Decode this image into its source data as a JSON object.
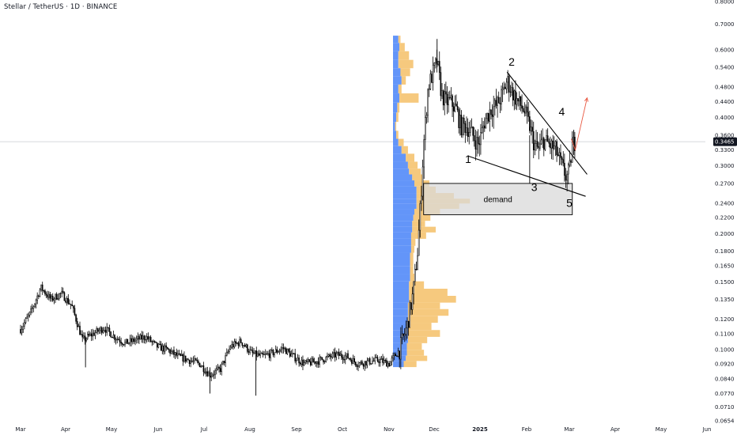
{
  "header": {
    "title": "Stellar / TetherUS · 1D · BINANCE"
  },
  "chart_data": {
    "type": "candlestick",
    "symbol": "Stellar / TetherUS",
    "interval": "1D",
    "exchange": "BINANCE",
    "price_axis": {
      "scale": "log",
      "range": [
        0.0654,
        0.8
      ],
      "ticks": [
        "0.8000",
        "0.7000",
        "0.6000",
        "0.5400",
        "0.4800",
        "0.4400",
        "0.4000",
        "0.3600",
        "0.3300",
        "0.3000",
        "0.2700",
        "0.2400",
        "0.2200",
        "0.2000",
        "0.1800",
        "0.1650",
        "0.1500",
        "0.1350",
        "0.1200",
        "0.1100",
        "0.1000",
        "0.0920",
        "0.0840",
        "0.0770",
        "0.0710",
        "0.0654"
      ]
    },
    "time_axis": {
      "labels": [
        "Mar",
        "Apr",
        "May",
        "Jun",
        "Jul",
        "Aug",
        "Sep",
        "Oct",
        "Nov",
        "Dec",
        "2025",
        "Feb",
        "Mar",
        "Apr",
        "May",
        "Jun"
      ],
      "bold_labels": [
        "2025"
      ]
    },
    "current_price": {
      "value": 0.3465,
      "label": "0.3465"
    },
    "price_path": [
      [
        "2024-03-01",
        0.113
      ],
      [
        "2024-03-08",
        0.125
      ],
      [
        "2024-03-15",
        0.145
      ],
      [
        "2024-03-22",
        0.135
      ],
      [
        "2024-03-29",
        0.14
      ],
      [
        "2024-04-05",
        0.13
      ],
      [
        "2024-04-12",
        0.106
      ],
      [
        "2024-04-19",
        0.11
      ],
      [
        "2024-04-26",
        0.114
      ],
      [
        "2024-05-03",
        0.108
      ],
      [
        "2024-05-10",
        0.104
      ],
      [
        "2024-05-17",
        0.106
      ],
      [
        "2024-05-24",
        0.108
      ],
      [
        "2024-05-31",
        0.102
      ],
      [
        "2024-06-07",
        0.1
      ],
      [
        "2024-06-14",
        0.096
      ],
      [
        "2024-06-21",
        0.094
      ],
      [
        "2024-06-28",
        0.092
      ],
      [
        "2024-07-05",
        0.086
      ],
      [
        "2024-07-12",
        0.089
      ],
      [
        "2024-07-19",
        0.102
      ],
      [
        "2024-07-26",
        0.105
      ],
      [
        "2024-08-02",
        0.098
      ],
      [
        "2024-08-09",
        0.096
      ],
      [
        "2024-08-16",
        0.098
      ],
      [
        "2024-08-23",
        0.101
      ],
      [
        "2024-08-30",
        0.096
      ],
      [
        "2024-09-06",
        0.092
      ],
      [
        "2024-09-13",
        0.093
      ],
      [
        "2024-09-20",
        0.095
      ],
      [
        "2024-09-27",
        0.097
      ],
      [
        "2024-10-04",
        0.096
      ],
      [
        "2024-10-11",
        0.092
      ],
      [
        "2024-10-18",
        0.093
      ],
      [
        "2024-10-25",
        0.094
      ],
      [
        "2024-11-01",
        0.092
      ],
      [
        "2024-11-08",
        0.1
      ],
      [
        "2024-11-13",
        0.115
      ],
      [
        "2024-11-17",
        0.14
      ],
      [
        "2024-11-20",
        0.18
      ],
      [
        "2024-11-22",
        0.24
      ],
      [
        "2024-11-24",
        0.34
      ],
      [
        "2024-11-27",
        0.48
      ],
      [
        "2024-11-30",
        0.52
      ],
      [
        "2024-12-03",
        0.56
      ],
      [
        "2024-12-06",
        0.46
      ],
      [
        "2024-12-09",
        0.44
      ],
      [
        "2024-12-12",
        0.44
      ],
      [
        "2024-12-16",
        0.42
      ],
      [
        "2024-12-19",
        0.38
      ],
      [
        "2024-12-23",
        0.38
      ],
      [
        "2024-12-27",
        0.36
      ],
      [
        "2024-12-31",
        0.34
      ],
      [
        "2025-01-04",
        0.39
      ],
      [
        "2025-01-08",
        0.42
      ],
      [
        "2025-01-12",
        0.43
      ],
      [
        "2025-01-16",
        0.46
      ],
      [
        "2025-01-19",
        0.5
      ],
      [
        "2025-01-22",
        0.47
      ],
      [
        "2025-01-26",
        0.44
      ],
      [
        "2025-01-30",
        0.42
      ],
      [
        "2025-02-03",
        0.38
      ],
      [
        "2025-02-06",
        0.34
      ],
      [
        "2025-02-09",
        0.33
      ],
      [
        "2025-02-12",
        0.35
      ],
      [
        "2025-02-16",
        0.34
      ],
      [
        "2025-02-20",
        0.33
      ],
      [
        "2025-02-24",
        0.3
      ],
      [
        "2025-02-27",
        0.28
      ],
      [
        "2025-03-01",
        0.29
      ],
      [
        "2025-03-03",
        0.34
      ],
      [
        "2025-03-05",
        0.3465
      ]
    ],
    "annotations": {
      "wave_labels": [
        {
          "text": "1",
          "date": "2024-12-24",
          "price": 0.305
        },
        {
          "text": "2",
          "date": "2025-01-22",
          "price": 0.545
        },
        {
          "text": "3",
          "date": "2025-02-06",
          "price": 0.258
        },
        {
          "text": "4",
          "date": "2025-02-24",
          "price": 0.405
        },
        {
          "text": "5",
          "date": "2025-03-01",
          "price": 0.235
        }
      ],
      "zone": {
        "label": "demand",
        "top": 0.27,
        "bottom": 0.224,
        "start": "2024-11-24",
        "end": "2025-03-03"
      },
      "trend_lines": [
        {
          "from": [
            "2025-01-19",
            0.525
          ],
          "to": [
            "2025-03-13",
            0.285
          ]
        },
        {
          "from": [
            "2024-12-24",
            0.318
          ],
          "to": [
            "2025-03-12",
            0.25
          ]
        }
      ],
      "projection": {
        "from": [
          "2025-03-05",
          0.33
        ],
        "to": [
          "2025-03-13",
          0.45
        ]
      }
    },
    "volume_profile": {
      "bins": [
        {
          "price": 0.64,
          "up": 5,
          "down": 2
        },
        {
          "price": 0.61,
          "up": 6,
          "down": 5
        },
        {
          "price": 0.58,
          "up": 5,
          "down": 10
        },
        {
          "price": 0.55,
          "up": 5,
          "down": 14
        },
        {
          "price": 0.525,
          "up": 7,
          "down": 9
        },
        {
          "price": 0.5,
          "up": 8,
          "down": 4
        },
        {
          "price": 0.475,
          "up": 5,
          "down": 3
        },
        {
          "price": 0.45,
          "up": 6,
          "down": 18
        },
        {
          "price": 0.425,
          "up": 4,
          "down": 2
        },
        {
          "price": 0.4,
          "up": 3,
          "down": 2
        },
        {
          "price": 0.38,
          "up": 2,
          "down": 1
        },
        {
          "price": 0.36,
          "up": 3,
          "down": 2
        },
        {
          "price": 0.345,
          "up": 5,
          "down": 5
        },
        {
          "price": 0.33,
          "up": 8,
          "down": 6
        },
        {
          "price": 0.315,
          "up": 12,
          "down": 8
        },
        {
          "price": 0.3,
          "up": 14,
          "down": 9
        },
        {
          "price": 0.29,
          "up": 15,
          "down": 11
        },
        {
          "price": 0.28,
          "up": 18,
          "down": 10
        },
        {
          "price": 0.27,
          "up": 20,
          "down": 14
        },
        {
          "price": 0.26,
          "up": 22,
          "down": 18
        },
        {
          "price": 0.25,
          "up": 22,
          "down": 35
        },
        {
          "price": 0.243,
          "up": 22,
          "down": 50
        },
        {
          "price": 0.236,
          "up": 22,
          "down": 40
        },
        {
          "price": 0.228,
          "up": 20,
          "down": 24
        },
        {
          "price": 0.22,
          "up": 19,
          "down": 16
        },
        {
          "price": 0.212,
          "up": 18,
          "down": 12
        },
        {
          "price": 0.205,
          "up": 18,
          "down": 22
        },
        {
          "price": 0.198,
          "up": 17,
          "down": 14
        },
        {
          "price": 0.19,
          "up": 17,
          "down": 4
        },
        {
          "price": 0.182,
          "up": 17,
          "down": 3
        },
        {
          "price": 0.175,
          "up": 16,
          "down": 3
        },
        {
          "price": 0.168,
          "up": 16,
          "down": 3
        },
        {
          "price": 0.161,
          "up": 16,
          "down": 3
        },
        {
          "price": 0.154,
          "up": 16,
          "down": 4
        },
        {
          "price": 0.147,
          "up": 15,
          "down": 14
        },
        {
          "price": 0.141,
          "up": 15,
          "down": 36
        },
        {
          "price": 0.135,
          "up": 15,
          "down": 44
        },
        {
          "price": 0.13,
          "up": 14,
          "down": 30
        },
        {
          "price": 0.125,
          "up": 14,
          "down": 38
        },
        {
          "price": 0.12,
          "up": 14,
          "down": 28
        },
        {
          "price": 0.115,
          "up": 14,
          "down": 22
        },
        {
          "price": 0.11,
          "up": 14,
          "down": 30
        },
        {
          "price": 0.106,
          "up": 14,
          "down": 18
        },
        {
          "price": 0.102,
          "up": 13,
          "down": 14
        },
        {
          "price": 0.098,
          "up": 13,
          "down": 16
        },
        {
          "price": 0.095,
          "up": 12,
          "down": 20
        },
        {
          "price": 0.092,
          "up": 10,
          "down": 12
        }
      ]
    },
    "colors": {
      "candle": "#000000",
      "profile_up": "#5b8ff9",
      "profile_down": "#f6c677",
      "zone_fill": "#d9d9d9",
      "projection": "#e8563f",
      "price_label_bg": "#131722",
      "crosshair": "#9598a1"
    }
  }
}
